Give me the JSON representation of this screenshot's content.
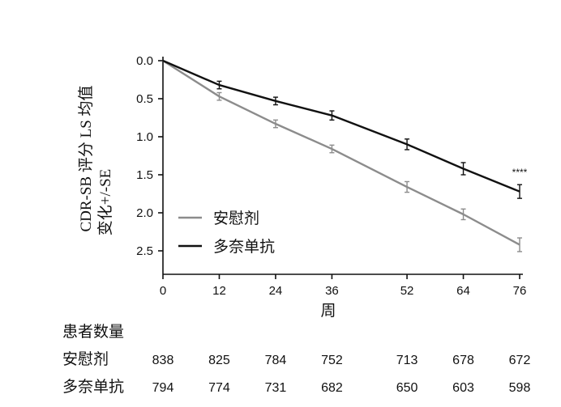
{
  "chart_data": {
    "type": "line",
    "x": [
      0,
      12,
      24,
      36,
      52,
      64,
      76
    ],
    "xlabel": "周",
    "ylabel_line1": "CDR-SB 评分 LS 均值",
    "ylabel_line2": "变化+/-SE",
    "ylim": [
      0.0,
      2.5
    ],
    "y_inverted": true,
    "y_ticks": [
      "0.0",
      "0.5",
      "1.0",
      "1.5",
      "2.0",
      "2.5"
    ],
    "x_ticks": [
      "0",
      "12",
      "24",
      "36",
      "52",
      "64",
      "76"
    ],
    "legend_position": "bottom-left",
    "series": [
      {
        "name": "安慰剂",
        "color": "#8c8c8c",
        "values": [
          0.0,
          0.47,
          0.83,
          1.16,
          1.66,
          2.02,
          2.42
        ],
        "errors": [
          0.0,
          0.05,
          0.05,
          0.05,
          0.07,
          0.07,
          0.09
        ]
      },
      {
        "name": "多奈单抗",
        "color": "#111111",
        "values": [
          0.0,
          0.32,
          0.53,
          0.72,
          1.1,
          1.42,
          1.72
        ],
        "errors": [
          0.0,
          0.05,
          0.05,
          0.06,
          0.07,
          0.08,
          0.09
        ]
      }
    ],
    "annotation": "****"
  },
  "numbers_at_risk": {
    "title": "患者数量",
    "rows": [
      {
        "label": "安慰剂",
        "values": [
          "838",
          "825",
          "784",
          "752",
          "713",
          "678",
          "672"
        ]
      },
      {
        "label": "多奈单抗",
        "values": [
          "794",
          "774",
          "731",
          "682",
          "650",
          "603",
          "598"
        ]
      }
    ]
  }
}
